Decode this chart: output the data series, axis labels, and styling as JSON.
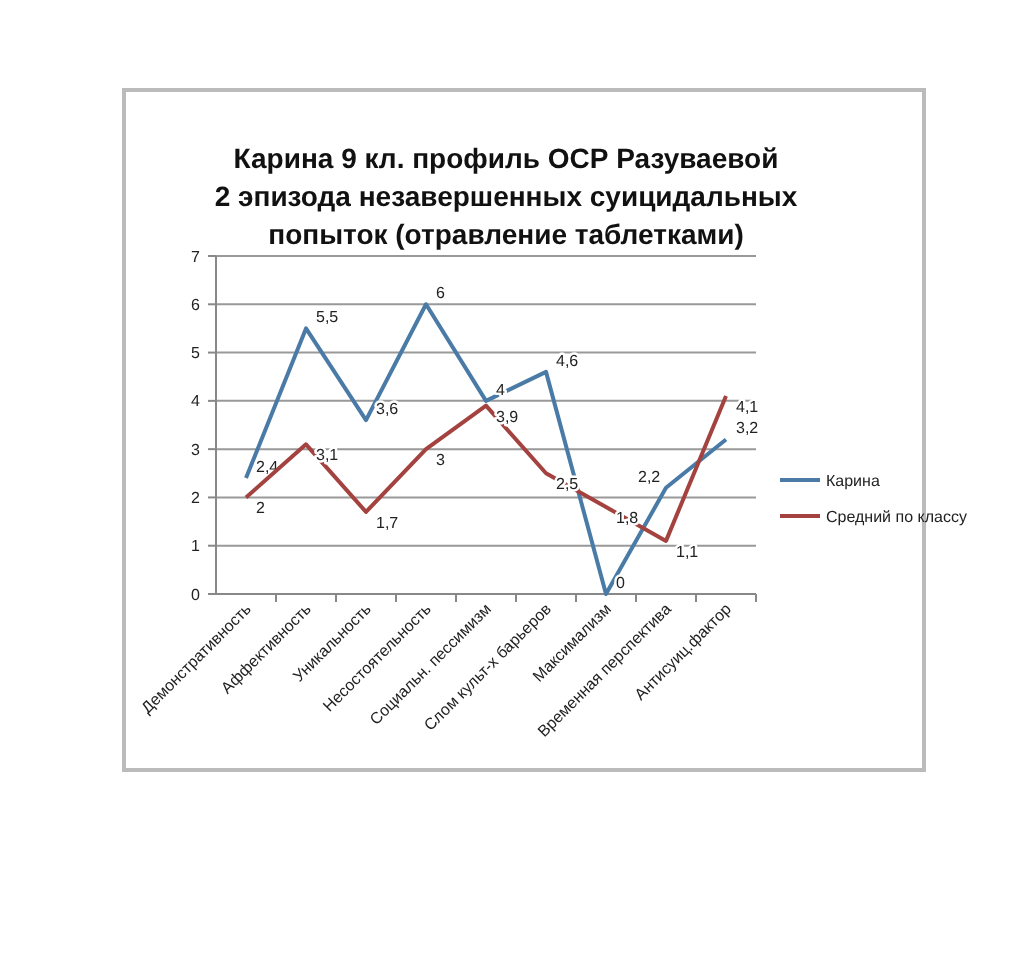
{
  "chart_data": {
    "type": "line",
    "title": "Карина 9 кл. профиль  ОСР Разуваевой\n2 эпизода незавершенных суицидальных\nпопыток (отравление таблетками)",
    "categories": [
      "Демонстративность",
      "Аффективность",
      "Уникальность",
      "Несостоятельность",
      "Социальн. пессимизм",
      "Слом культ-х барьеров",
      "Максимализм",
      "Временная перспектива",
      "Антисуиц.фактор"
    ],
    "series": [
      {
        "name": "Карина",
        "color": "#4a7ba7",
        "values": [
          2.4,
          5.5,
          3.6,
          6,
          4,
          4.6,
          0,
          2.2,
          3.2
        ],
        "value_labels": [
          "2,4",
          "5,5",
          "3,6",
          "6",
          "4",
          "4,6",
          "0",
          "2,2",
          "3,2"
        ]
      },
      {
        "name": "Средний по классу",
        "color": "#a3423f",
        "values": [
          2,
          3.1,
          1.7,
          3,
          3.9,
          2.5,
          1.8,
          1.1,
          4.1
        ],
        "value_labels": [
          "2",
          "3,1",
          "1,7",
          "3",
          "3,9",
          "2,5",
          "1,8",
          "1,1",
          "4,1"
        ]
      }
    ],
    "ylim": [
      0,
      7
    ],
    "yticks": [
      0,
      1,
      2,
      3,
      4,
      5,
      6,
      7
    ],
    "grid": "y",
    "legend": "right",
    "marker": "none",
    "line_style": "solid"
  }
}
